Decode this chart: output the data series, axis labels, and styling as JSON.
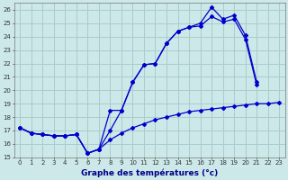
{
  "xlabel": "Graphe des températures (°c)",
  "background_color": "#cce8e8",
  "grid_color": "#aacccc",
  "line_color": "#0000cc",
  "hours": [
    0,
    1,
    2,
    3,
    4,
    5,
    6,
    7,
    8,
    9,
    10,
    11,
    12,
    13,
    14,
    15,
    16,
    17,
    18,
    19,
    20,
    21,
    22,
    23
  ],
  "temp_high": [
    17.2,
    16.8,
    16.7,
    16.6,
    16.6,
    16.7,
    15.3,
    15.6,
    18.5,
    18.5,
    20.6,
    21.9,
    22.0,
    23.5,
    24.4,
    24.7,
    25.0,
    26.2,
    25.3,
    25.6,
    24.1,
    20.6,
    null,
    null
  ],
  "temp_mid": [
    17.2,
    16.8,
    16.7,
    16.6,
    16.6,
    16.7,
    15.3,
    15.6,
    17.0,
    18.5,
    20.6,
    21.9,
    22.0,
    23.5,
    24.4,
    24.7,
    24.8,
    25.5,
    25.1,
    25.3,
    23.8,
    20.4,
    null,
    null
  ],
  "temp_low": [
    17.2,
    16.8,
    16.7,
    16.6,
    16.6,
    16.7,
    15.3,
    15.6,
    16.3,
    16.8,
    17.2,
    17.5,
    17.8,
    18.0,
    18.2,
    18.4,
    18.5,
    18.6,
    18.7,
    18.8,
    18.9,
    19.0,
    19.0,
    19.1
  ],
  "ylim_min": 15,
  "ylim_max": 26.5,
  "yticks": [
    15,
    16,
    17,
    18,
    19,
    20,
    21,
    22,
    23,
    24,
    25,
    26
  ],
  "xticks": [
    0,
    1,
    2,
    3,
    4,
    5,
    6,
    7,
    8,
    9,
    10,
    11,
    12,
    13,
    14,
    15,
    16,
    17,
    18,
    19,
    20,
    21,
    22,
    23
  ]
}
